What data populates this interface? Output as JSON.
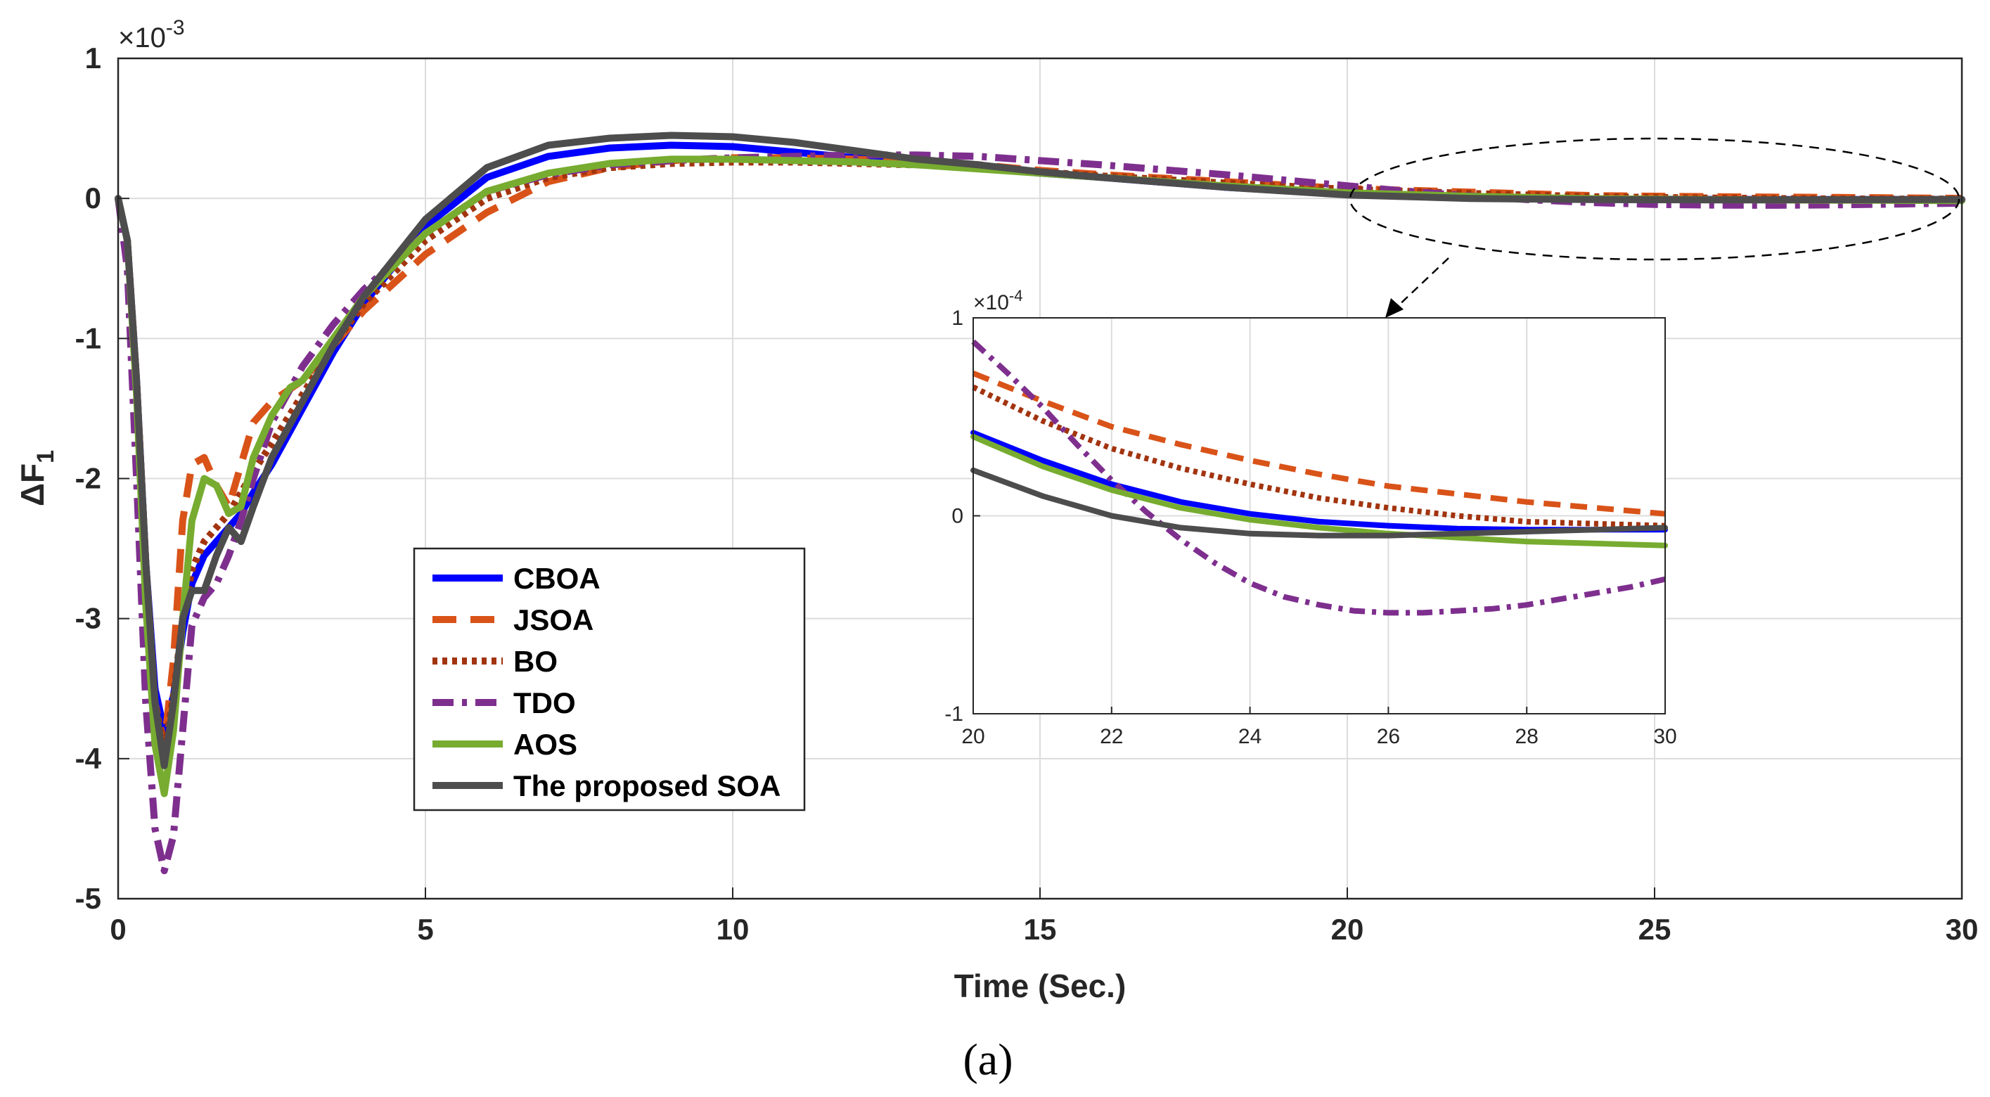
{
  "chart_data": {
    "type": "line",
    "caption": "(a)",
    "xlabel": "Time (Sec.)",
    "ylabel": "ΔF",
    "ylabel_sub": "1",
    "y_multiplier": "×10",
    "y_multiplier_exp": "-3",
    "xlim": [
      0,
      30
    ],
    "ylim": [
      -5,
      1
    ],
    "x_ticks": [
      "0",
      "5",
      "10",
      "15",
      "20",
      "25",
      "30"
    ],
    "y_ticks": [
      "-5",
      "-4",
      "-3",
      "-2",
      "-1",
      "0",
      "1"
    ],
    "grid": true,
    "legend_position": "lower-left",
    "series": [
      {
        "name": "CBOA",
        "color": "#0000ff",
        "style": "solid",
        "x": [
          0,
          0.15,
          0.3,
          0.45,
          0.6,
          0.75,
          0.9,
          1.05,
          1.2,
          1.4,
          1.6,
          1.8,
          2.0,
          2.2,
          2.5,
          3.0,
          3.5,
          4.0,
          5.0,
          6.0,
          7.0,
          8.0,
          9.0,
          10.0,
          11.0,
          12.0,
          13.0,
          14.0,
          15.0,
          16.0,
          18.0,
          20.0,
          22.0,
          24.0,
          26.0,
          28.0,
          30.0
        ],
        "y": [
          0,
          -0.3,
          -1.3,
          -2.6,
          -3.5,
          -3.8,
          -3.55,
          -3.1,
          -2.75,
          -2.55,
          -2.45,
          -2.35,
          -2.25,
          -2.1,
          -1.9,
          -1.5,
          -1.1,
          -0.75,
          -0.2,
          0.15,
          0.3,
          0.36,
          0.38,
          0.37,
          0.33,
          0.29,
          0.25,
          0.22,
          0.18,
          0.15,
          0.08,
          0.03,
          0.012,
          -0.003,
          -0.007,
          -0.008,
          -0.008
        ]
      },
      {
        "name": "JSOA",
        "color": "#d95319",
        "style": "dashed",
        "x": [
          0,
          0.15,
          0.3,
          0.45,
          0.6,
          0.75,
          0.9,
          1.05,
          1.2,
          1.4,
          1.6,
          1.8,
          2.0,
          2.2,
          2.5,
          3.0,
          3.5,
          4.0,
          5.0,
          6.0,
          7.0,
          8.0,
          9.0,
          10.0,
          11.0,
          12.0,
          13.0,
          14.0,
          15.0,
          16.0,
          18.0,
          20.0,
          22.0,
          24.0,
          26.0,
          28.0,
          30.0
        ],
        "y": [
          0,
          -0.3,
          -1.3,
          -2.6,
          -3.6,
          -3.9,
          -3.3,
          -2.3,
          -1.9,
          -1.85,
          -2.05,
          -2.2,
          -1.9,
          -1.6,
          -1.45,
          -1.3,
          -1.05,
          -0.8,
          -0.4,
          -0.1,
          0.12,
          0.22,
          0.27,
          0.29,
          0.29,
          0.28,
          0.26,
          0.24,
          0.2,
          0.17,
          0.12,
          0.07,
          0.045,
          0.02,
          0.012,
          0.007,
          0.001
        ]
      },
      {
        "name": "BO",
        "color": "#a2340f",
        "style": "dotted",
        "x": [
          0,
          0.15,
          0.3,
          0.45,
          0.6,
          0.75,
          0.9,
          1.05,
          1.2,
          1.4,
          1.6,
          1.8,
          2.0,
          2.2,
          2.5,
          3.0,
          3.5,
          4.0,
          5.0,
          6.0,
          7.0,
          8.0,
          9.0,
          10.0,
          11.0,
          12.0,
          13.0,
          14.0,
          15.0,
          16.0,
          18.0,
          20.0,
          22.0,
          24.0,
          26.0,
          28.0,
          30.0
        ],
        "y": [
          0,
          -0.3,
          -1.3,
          -2.6,
          -3.6,
          -3.95,
          -3.55,
          -3.0,
          -2.65,
          -2.45,
          -2.35,
          -2.25,
          -2.1,
          -1.95,
          -1.75,
          -1.4,
          -1.05,
          -0.75,
          -0.3,
          0.0,
          0.15,
          0.22,
          0.25,
          0.26,
          0.26,
          0.25,
          0.24,
          0.22,
          0.19,
          0.16,
          0.11,
          0.065,
          0.035,
          0.012,
          0.002,
          -0.004,
          -0.005
        ]
      },
      {
        "name": "TDO",
        "color": "#7e2f8e",
        "style": "dashdot",
        "x": [
          0,
          0.15,
          0.3,
          0.45,
          0.6,
          0.75,
          0.9,
          1.05,
          1.2,
          1.4,
          1.6,
          1.8,
          2.0,
          2.2,
          2.5,
          3.0,
          3.5,
          4.0,
          5.0,
          6.0,
          7.0,
          8.0,
          9.0,
          10.0,
          11.0,
          12.0,
          13.0,
          14.0,
          15.0,
          16.0,
          18.0,
          20.0,
          21.0,
          22.0,
          23.0,
          24.0,
          25.0,
          26.0,
          27.0,
          28.0,
          29.0,
          30.0
        ],
        "y": [
          0,
          -0.5,
          -2.0,
          -3.6,
          -4.5,
          -4.8,
          -4.55,
          -3.8,
          -3.05,
          -2.85,
          -2.75,
          -2.55,
          -2.3,
          -2.0,
          -1.6,
          -1.2,
          -0.9,
          -0.65,
          -0.25,
          0.05,
          0.17,
          0.24,
          0.27,
          0.29,
          0.3,
          0.31,
          0.31,
          0.3,
          0.27,
          0.24,
          0.17,
          0.09,
          0.05,
          0.018,
          -0.01,
          -0.03,
          -0.043,
          -0.048,
          -0.049,
          -0.046,
          -0.04,
          -0.034
        ]
      },
      {
        "name": "AOS",
        "color": "#77ac30",
        "style": "solid",
        "x": [
          0,
          0.15,
          0.3,
          0.45,
          0.6,
          0.75,
          0.9,
          1.05,
          1.2,
          1.4,
          1.6,
          1.8,
          2.0,
          2.2,
          2.5,
          2.8,
          3.0,
          3.5,
          4.0,
          5.0,
          6.0,
          7.0,
          8.0,
          9.0,
          10.0,
          11.0,
          12.0,
          13.0,
          14.0,
          15.0,
          16.0,
          18.0,
          20.0,
          22.0,
          24.0,
          26.0,
          28.0,
          30.0
        ],
        "y": [
          0,
          -0.3,
          -1.4,
          -2.9,
          -3.9,
          -4.25,
          -3.8,
          -3.0,
          -2.3,
          -2.0,
          -2.05,
          -2.25,
          -2.2,
          -1.85,
          -1.55,
          -1.35,
          -1.3,
          -1.0,
          -0.7,
          -0.25,
          0.05,
          0.18,
          0.25,
          0.28,
          0.28,
          0.27,
          0.26,
          0.24,
          0.21,
          0.18,
          0.15,
          0.09,
          0.04,
          0.015,
          -0.002,
          -0.009,
          -0.012,
          -0.015
        ]
      },
      {
        "name": "The proposed SOA",
        "color": "#4d4d4d",
        "style": "solid",
        "x": [
          0,
          0.15,
          0.3,
          0.45,
          0.6,
          0.75,
          0.9,
          1.05,
          1.2,
          1.4,
          1.6,
          1.8,
          2.0,
          2.2,
          2.5,
          3.0,
          3.5,
          4.0,
          5.0,
          6.0,
          7.0,
          8.0,
          9.0,
          10.0,
          11.0,
          12.0,
          13.0,
          14.0,
          15.0,
          16.0,
          18.0,
          20.0,
          22.0,
          24.0,
          26.0,
          28.0,
          30.0
        ],
        "y": [
          0,
          -0.3,
          -1.3,
          -2.6,
          -3.6,
          -4.05,
          -3.6,
          -3.0,
          -2.8,
          -2.8,
          -2.55,
          -2.35,
          -2.45,
          -2.2,
          -1.85,
          -1.45,
          -1.05,
          -0.7,
          -0.15,
          0.22,
          0.38,
          0.43,
          0.45,
          0.44,
          0.4,
          0.34,
          0.28,
          0.24,
          0.19,
          0.15,
          0.08,
          0.025,
          0.0,
          -0.008,
          -0.01,
          -0.009,
          -0.007
        ]
      }
    ],
    "inset": {
      "xlim": [
        20,
        30
      ],
      "ylim": [
        -1,
        1
      ],
      "x_ticks": [
        "20",
        "22",
        "24",
        "26",
        "28",
        "30"
      ],
      "y_ticks": [
        "-1",
        "0",
        "1"
      ],
      "y_multiplier": "×10",
      "y_multiplier_exp": "-4",
      "series": [
        {
          "name": "CBOA",
          "color": "#0000ff",
          "style": "solid",
          "x": [
            20,
            21,
            22,
            23,
            24,
            25,
            26,
            27,
            28,
            29,
            30
          ],
          "y": [
            0.42,
            0.28,
            0.16,
            0.07,
            0.01,
            -0.03,
            -0.05,
            -0.065,
            -0.07,
            -0.07,
            -0.07
          ]
        },
        {
          "name": "JSOA",
          "color": "#d95319",
          "style": "dashed",
          "x": [
            20,
            21,
            22,
            23,
            24,
            25,
            26,
            27,
            28,
            29,
            30
          ],
          "y": [
            0.72,
            0.58,
            0.45,
            0.36,
            0.28,
            0.21,
            0.15,
            0.11,
            0.07,
            0.04,
            0.01
          ]
        },
        {
          "name": "BO",
          "color": "#a2340f",
          "style": "dotted",
          "x": [
            20,
            21,
            22,
            23,
            24,
            25,
            26,
            27,
            28,
            29,
            30
          ],
          "y": [
            0.65,
            0.48,
            0.34,
            0.24,
            0.16,
            0.09,
            0.04,
            0.0,
            -0.03,
            -0.04,
            -0.05
          ]
        },
        {
          "name": "TDO",
          "color": "#7e2f8e",
          "style": "dashdot",
          "x": [
            20,
            20.5,
            21,
            21.5,
            22,
            22.5,
            23,
            23.5,
            24,
            24.5,
            25,
            25.5,
            26,
            26.5,
            27,
            27.5,
            28,
            28.5,
            29,
            29.5,
            30
          ],
          "y": [
            0.88,
            0.72,
            0.55,
            0.36,
            0.18,
            0.02,
            -0.12,
            -0.24,
            -0.34,
            -0.41,
            -0.45,
            -0.48,
            -0.49,
            -0.49,
            -0.48,
            -0.47,
            -0.45,
            -0.42,
            -0.39,
            -0.36,
            -0.32
          ]
        },
        {
          "name": "AOS",
          "color": "#77ac30",
          "style": "solid",
          "x": [
            20,
            21,
            22,
            23,
            24,
            25,
            26,
            27,
            28,
            29,
            30
          ],
          "y": [
            0.4,
            0.25,
            0.13,
            0.04,
            -0.02,
            -0.06,
            -0.09,
            -0.11,
            -0.13,
            -0.14,
            -0.15
          ]
        },
        {
          "name": "The proposed SOA",
          "color": "#4d4d4d",
          "style": "solid",
          "x": [
            20,
            21,
            22,
            23,
            24,
            25,
            26,
            27,
            28,
            29,
            30
          ],
          "y": [
            0.23,
            0.1,
            0.0,
            -0.06,
            -0.09,
            -0.1,
            -0.1,
            -0.09,
            -0.08,
            -0.07,
            -0.06
          ]
        }
      ]
    }
  }
}
